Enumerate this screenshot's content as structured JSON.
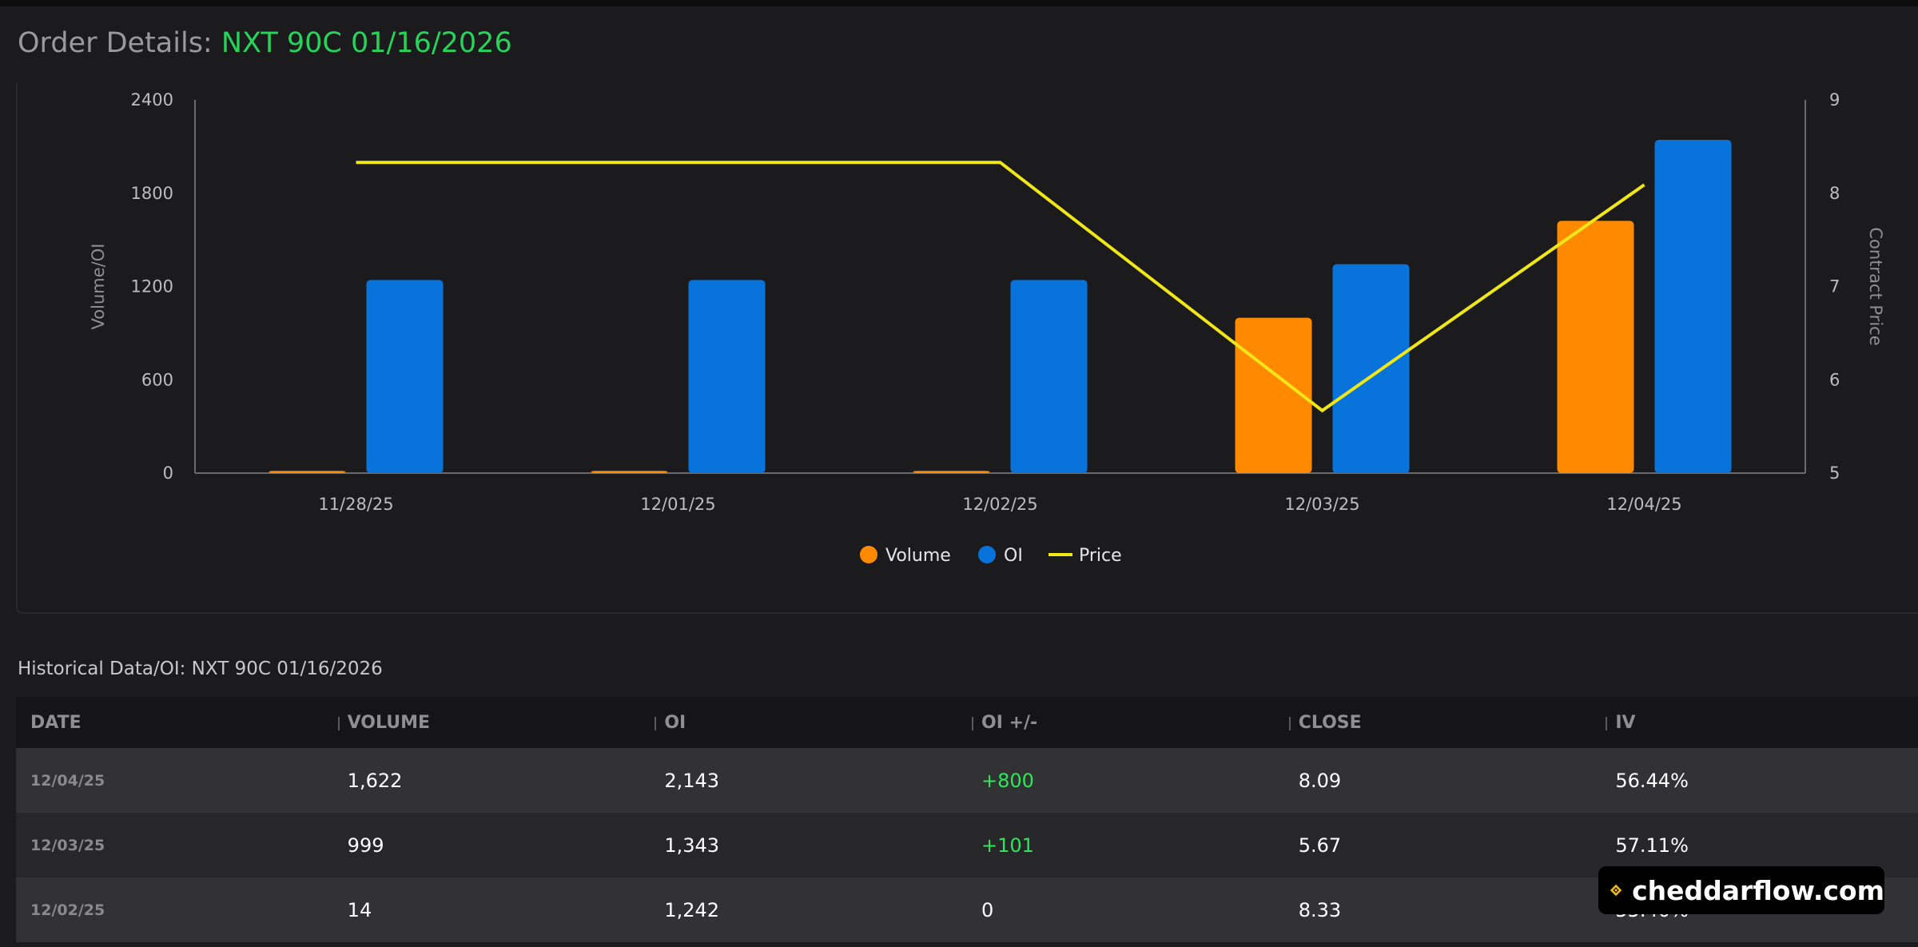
{
  "header": {
    "title_prefix": "Order Details: ",
    "contract": "NXT 90C 01/16/2026"
  },
  "chart_data": {
    "type": "bar",
    "categories": [
      "11/28/25",
      "12/01/25",
      "12/02/25",
      "12/03/25",
      "12/04/25"
    ],
    "series": [
      {
        "name": "Volume",
        "type": "bar",
        "axis": "left",
        "color": "#ff8a00",
        "values": [
          14,
          14,
          14,
          999,
          1622
        ]
      },
      {
        "name": "OI",
        "type": "bar",
        "axis": "left",
        "color": "#0874db",
        "values": [
          1242,
          1242,
          1242,
          1343,
          2143
        ]
      },
      {
        "name": "Price",
        "type": "line",
        "axis": "right",
        "color": "#f0e618",
        "values": [
          8.33,
          8.33,
          8.33,
          5.67,
          8.09
        ]
      }
    ],
    "ylabel": "Volume/OI",
    "ylim": [
      0,
      2400
    ],
    "yticks": [
      0,
      600,
      1200,
      1800,
      2400
    ],
    "y2label": "Contract Price",
    "y2lim": [
      5,
      9
    ],
    "y2ticks": [
      5,
      6,
      7,
      8,
      9
    ],
    "legend_position": "bottom-center",
    "grid": false
  },
  "table": {
    "title": "Historical Data/OI: NXT 90C 01/16/2026",
    "columns": [
      "DATE",
      "VOLUME",
      "OI",
      "OI +/-",
      "CLOSE",
      "IV"
    ],
    "rows": [
      [
        "12/04/25",
        "1,622",
        "2,143",
        "+800",
        "8.09",
        "56.44%"
      ],
      [
        "12/03/25",
        "999",
        "1,343",
        "+101",
        "5.67",
        "57.11%"
      ],
      [
        "12/02/25",
        "14",
        "1,242",
        "0",
        "8.33",
        "55.40%"
      ]
    ]
  },
  "watermark": {
    "text": "cheddarflow.com",
    "logo_icon": "cheddarflow-logo-icon"
  },
  "colors": {
    "contract": "#28d35a",
    "positive": "#2ee65a",
    "background": "#1b1b1d"
  }
}
